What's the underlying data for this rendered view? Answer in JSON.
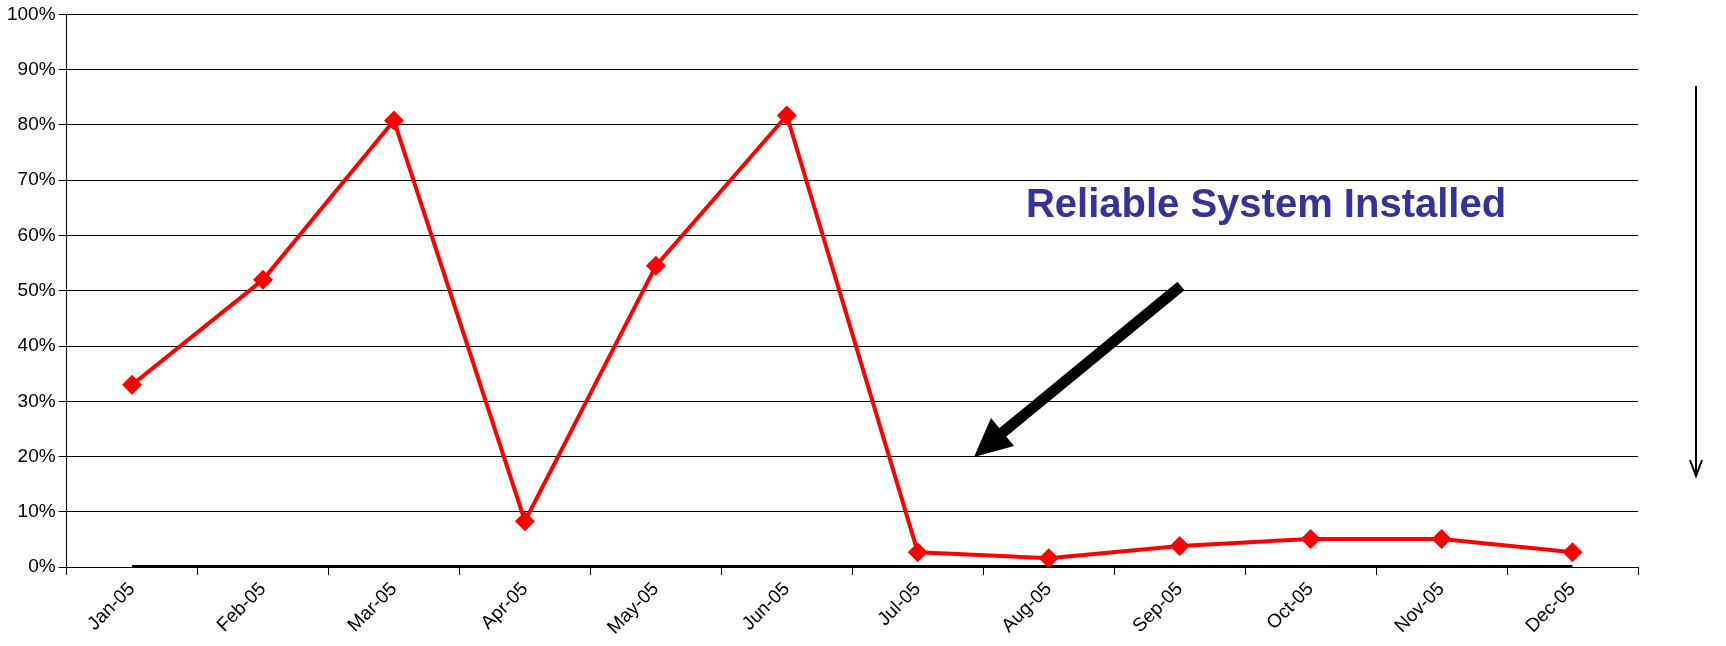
{
  "chart_data": {
    "type": "line",
    "categories": [
      "Jan-05",
      "Feb-05",
      "Mar-05",
      "Apr-05",
      "May-05",
      "Jun-05",
      "Jul-05",
      "Aug-05",
      "Sep-05",
      "Oct-05",
      "Nov-05",
      "Dec-05"
    ],
    "series": [
      {
        "color": "#ff0000",
        "values": [
          33,
          52,
          80.8,
          8.3,
          54.5,
          81.7,
          2.7,
          1.6,
          3.8,
          5.1,
          5.1,
          2.7
        ]
      },
      {
        "color": "#000000",
        "marker": "none",
        "values": [
          0,
          0,
          0,
          0,
          0,
          0,
          0,
          0,
          0,
          0,
          0,
          0
        ]
      }
    ],
    "ylim": [
      0,
      100
    ],
    "yticks": [
      {
        "value": 0,
        "label": "0%"
      },
      {
        "value": 10,
        "label": "10%"
      },
      {
        "value": 20,
        "label": "20%"
      },
      {
        "value": 30,
        "label": "30%"
      },
      {
        "value": 40,
        "label": "40%"
      },
      {
        "value": 50,
        "label": "50%"
      },
      {
        "value": 60,
        "label": "60%"
      },
      {
        "value": 70,
        "label": "70%"
      },
      {
        "value": 80,
        "label": "80%"
      },
      {
        "value": 90,
        "label": "90%"
      },
      {
        "value": 100,
        "label": "100%"
      }
    ],
    "grid": "y",
    "legend": false,
    "marker": "diamond",
    "line_style": "solid",
    "annotations": [
      "Reliable System Installed"
    ]
  }
}
